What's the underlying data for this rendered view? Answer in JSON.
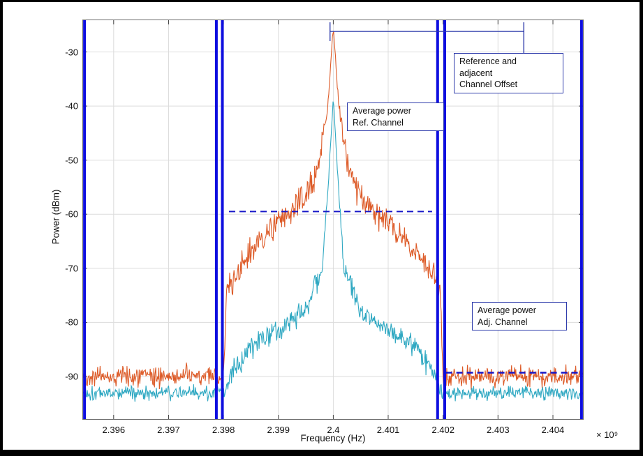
{
  "chart_data": {
    "type": "line",
    "title": "",
    "xlabel": "Frequency (Hz)",
    "ylabel": "Power (dBm)",
    "exponent_label": "× 10⁹",
    "xlim": [
      2.39543,
      2.40456
    ],
    "ylim": [
      -98,
      -24
    ],
    "grid": true,
    "x_ticks": [
      2.396,
      2.397,
      2.398,
      2.399,
      2.4,
      2.401,
      2.402,
      2.403,
      2.404
    ],
    "x_tick_labels": [
      "2.396",
      "2.397",
      "2.398",
      "2.399",
      "2.4",
      "2.401",
      "2.402",
      "2.403",
      "2.404"
    ],
    "y_ticks": [
      -30,
      -40,
      -50,
      -60,
      -70,
      -80,
      -90
    ],
    "y_tick_labels": [
      "-30",
      "-40",
      "-50",
      "-60",
      "-70",
      "-80",
      "-90"
    ],
    "series": [
      {
        "name": "reference-channel-trace",
        "color": "#DD5B28",
        "seed": 42,
        "points": 820,
        "peak_freq": 2.4,
        "peak_dbm": -25.5,
        "channel": [
          2.39805,
          2.40195
        ],
        "noise_sigma_channel": 2.6,
        "noise_sigma_floor": 1.8,
        "envelope": [
          [
            2.39543,
            -90
          ],
          [
            2.398,
            -90
          ],
          [
            2.39806,
            -74
          ],
          [
            2.3985,
            -67
          ],
          [
            2.399,
            -61.5
          ],
          [
            2.3995,
            -57
          ],
          [
            2.3997,
            -52
          ],
          [
            2.3999,
            -40
          ],
          [
            2.4,
            -25.5
          ],
          [
            2.4001,
            -40
          ],
          [
            2.4003,
            -52
          ],
          [
            2.4005,
            -57
          ],
          [
            2.401,
            -61.5
          ],
          [
            2.4015,
            -67
          ],
          [
            2.40194,
            -73
          ],
          [
            2.402,
            -90
          ],
          [
            2.40456,
            -90
          ]
        ]
      },
      {
        "name": "adjacent-channel-trace",
        "color": "#2FA8C2",
        "seed": 1337,
        "points": 820,
        "peak_freq": 2.4,
        "peak_dbm": -38.5,
        "channel": [
          2.39805,
          2.40195
        ],
        "noise_sigma_channel": 2.1,
        "noise_sigma_floor": 1.3,
        "envelope": [
          [
            2.39543,
            -93
          ],
          [
            2.398,
            -93
          ],
          [
            2.3982,
            -89
          ],
          [
            2.3985,
            -84.5
          ],
          [
            2.399,
            -81
          ],
          [
            2.3995,
            -77.5
          ],
          [
            2.3998,
            -70
          ],
          [
            2.3999,
            -56
          ],
          [
            2.4,
            -38.5
          ],
          [
            2.4001,
            -56
          ],
          [
            2.4002,
            -70
          ],
          [
            2.4005,
            -77.5
          ],
          [
            2.401,
            -81
          ],
          [
            2.4015,
            -84.5
          ],
          [
            2.4018,
            -89
          ],
          [
            2.402,
            -93
          ],
          [
            2.40456,
            -93
          ]
        ]
      }
    ],
    "markers": {
      "vertical_lines": {
        "color": "#0D0DDF",
        "width": 4,
        "x": [
          2.39547,
          2.39787,
          2.39798,
          2.4019,
          2.40203,
          2.40452
        ]
      },
      "avg_ref_line": {
        "y": -59.5,
        "x1": 2.3981,
        "x2": 2.4018,
        "color": "#1717C8",
        "width": 2,
        "style": "dashed",
        "label": "Average power Ref. Channel"
      },
      "avg_adj_line": {
        "y": -89.3,
        "x1": 2.40205,
        "x2": 2.4045,
        "color": "#1717C8",
        "width": 2.4,
        "style": "dashed",
        "label": "Average power Adj. Channel"
      },
      "offset_bracket": {
        "x1": 2.39994,
        "x2": 2.40347,
        "y": -26.2,
        "tick_top": -24.5,
        "tick_bottom": -28,
        "right_drop_to": -30.3,
        "color": "#2E3BAB"
      }
    }
  },
  "annotations": {
    "offset_box": {
      "text": "Reference and\nadjacent\nChannel Offset"
    },
    "ref_box": {
      "text": "Average power\nRef. Channel"
    },
    "adj_box": {
      "text": "Average power\nAdj. Channel"
    }
  }
}
